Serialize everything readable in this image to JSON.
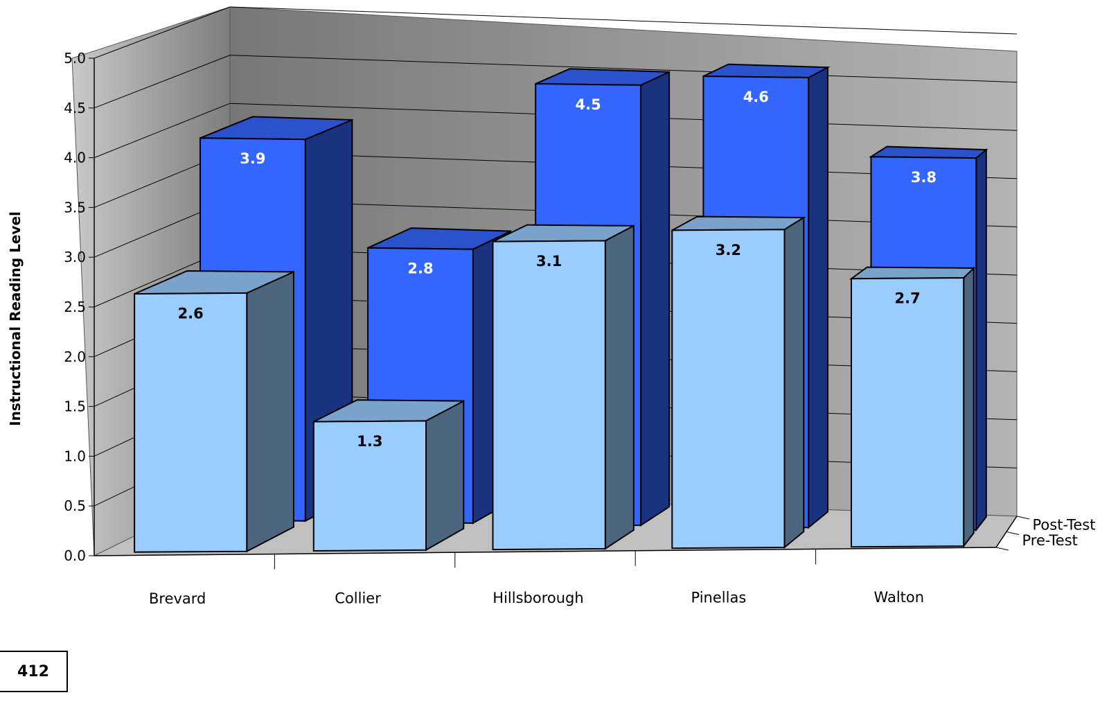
{
  "page_number": "412",
  "chart_data": {
    "type": "bar",
    "title": "",
    "ylabel": "Instructional Reading Level",
    "xlabel": "",
    "ylim": [
      0,
      5.0
    ],
    "yticks": [
      "0.0",
      "0.5",
      "1.0",
      "1.5",
      "2.0",
      "2.5",
      "3.0",
      "3.5",
      "4.0",
      "4.5",
      "5.0"
    ],
    "categories": [
      "Brevard",
      "Collier",
      "Hillsborough",
      "Pinellas",
      "Walton"
    ],
    "series": [
      {
        "name": "Pre-Test",
        "values": [
          2.6,
          1.3,
          3.1,
          3.2,
          2.7
        ],
        "labels": [
          "2.6",
          "1.3",
          "3.1",
          "3.2",
          "2.7"
        ]
      },
      {
        "name": "Post-Test",
        "values": [
          3.9,
          2.8,
          4.5,
          4.6,
          3.8
        ],
        "labels": [
          "3.9",
          "2.8",
          "4.5",
          "4.6",
          "3.8"
        ]
      }
    ],
    "colors": {
      "pre_front": "#99ccff",
      "pre_top": "#7aa3cc",
      "pre_side": "#4d6680",
      "post_front": "#3366ff",
      "post_top": "#2952cc",
      "post_side": "#1a3380",
      "floor": "#c0c0c0"
    },
    "grid": true,
    "style": "3d"
  }
}
